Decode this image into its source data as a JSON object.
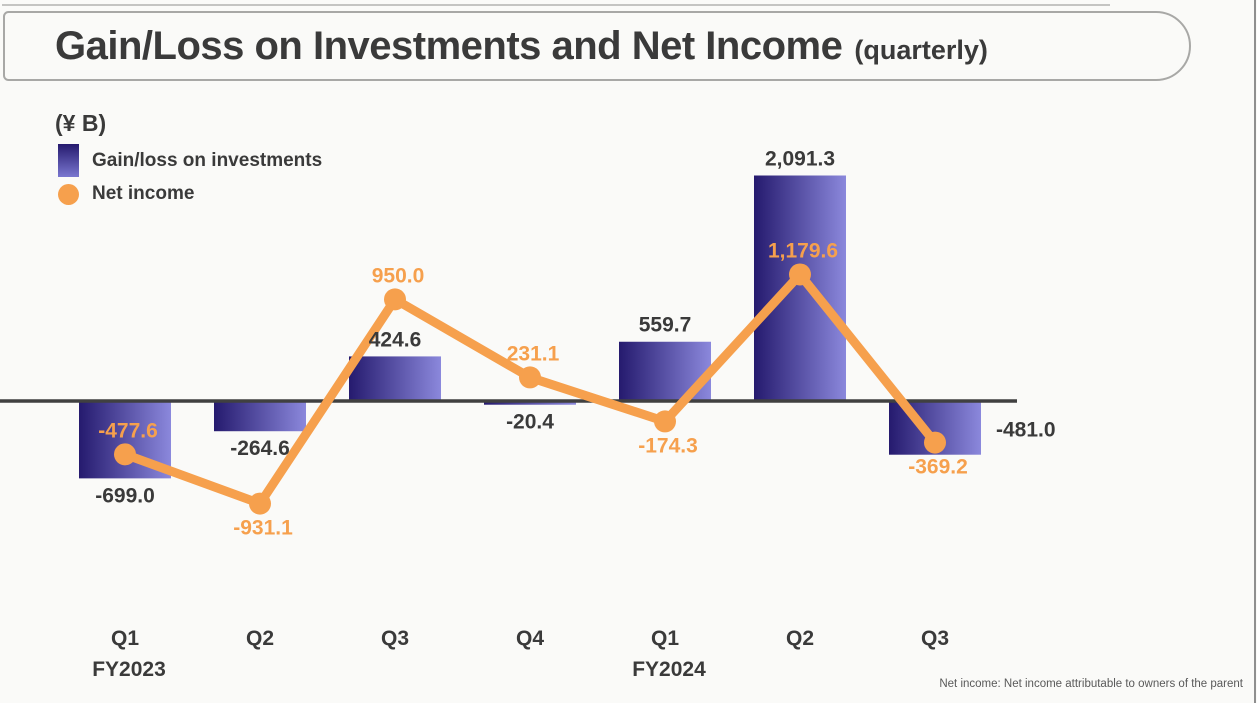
{
  "title": {
    "main": "Gain/Loss on Investments and Net Income",
    "suffix": "(quarterly)"
  },
  "legend": {
    "unit": "(¥ B)",
    "items": [
      {
        "label": "Gain/loss on investments",
        "swatch": "bar-gradient"
      },
      {
        "label": "Net income",
        "swatch": "orange-dot"
      }
    ]
  },
  "footnote": "Net income: Net income attributable to owners of the parent",
  "colors": {
    "bar_gradient_start": "#251a6e",
    "bar_gradient_end": "#8b88dc",
    "bar_gradient_mid": "#7a77d0",
    "net_income_orange": "#f6a04d",
    "axis_line": "#404040",
    "label_dark": "#3a3a3a"
  },
  "chart_data": {
    "type": "combo",
    "categories": [
      "Q1",
      "Q2",
      "Q3",
      "Q4",
      "Q1",
      "Q2",
      "Q3"
    ],
    "fiscal_year_labels": [
      {
        "index": 0,
        "label": "FY2023"
      },
      {
        "index": 4,
        "label": "FY2024"
      }
    ],
    "series": [
      {
        "name": "Gain/loss on investments",
        "type": "bar",
        "values": [
          -699.0,
          -264.6,
          424.6,
          -20.4,
          559.7,
          2091.3,
          -481.0
        ],
        "labels": [
          "-699.0",
          "-264.6",
          "424.6",
          "-20.4",
          "559.7",
          "2,091.3",
          "-481.0"
        ],
        "label_placement": [
          "below",
          "below",
          "above",
          "below",
          "above",
          "above",
          "right"
        ]
      },
      {
        "name": "Net income",
        "type": "line",
        "values": [
          -477.6,
          -931.1,
          950.0,
          231.1,
          -174.3,
          1179.6,
          -369.2
        ],
        "labels": [
          "-477.6",
          "-931.1",
          "950.0",
          "231.1",
          "-174.3",
          "1,179.6",
          "-369.2"
        ],
        "label_placement": [
          "above",
          "below",
          "above",
          "above",
          "below",
          "above",
          "below"
        ]
      }
    ],
    "ylim": [
      -1000,
      2200
    ],
    "unit": "¥ B",
    "grid": false,
    "legend_position": "top-left"
  }
}
